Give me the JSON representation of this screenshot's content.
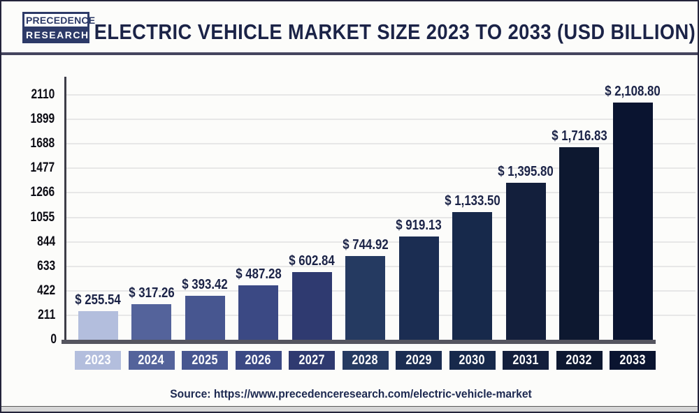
{
  "header": {
    "logo_line1": "PRECEDENCE",
    "logo_line2": "RESEARCH",
    "title": "ELECTRIC VEHICLE MARKET SIZE 2023 TO 2033 (USD BILLION)"
  },
  "chart_data": {
    "type": "bar",
    "title": "Electric Vehicle Market Size 2023 to 2033 (USD Billion)",
    "categories": [
      "2023",
      "2024",
      "2025",
      "2026",
      "2027",
      "2028",
      "2029",
      "2030",
      "2031",
      "2032",
      "2033"
    ],
    "values": [
      255.54,
      317.26,
      393.42,
      487.28,
      602.84,
      744.92,
      919.13,
      1133.5,
      1395.8,
      1716.83,
      2108.8
    ],
    "value_labels": [
      "$ 255.54",
      "$ 317.26",
      "$ 393.42",
      "$ 487.28",
      "$ 602.84",
      "$ 744.92",
      "$ 919.13",
      "$ 1,133.50",
      "$ 1,395.80",
      "$ 1,716.83",
      "$ 2,108.80"
    ],
    "bar_colors": [
      "#b3bedd",
      "#54639b",
      "#475690",
      "#3b4984",
      "#2f3a70",
      "#253a61",
      "#1b2d52",
      "#17294b",
      "#131f3c",
      "#0d1830",
      "#0a1430"
    ],
    "xlabel": "",
    "ylabel": "",
    "ylim": [
      0,
      2110
    ],
    "yticks": [
      0,
      211,
      422,
      633,
      844,
      1055,
      1266,
      1477,
      1688,
      1899,
      2110
    ],
    "grid": "horizontal",
    "legend": "none",
    "label_color": "#1b2347",
    "axis_color": "#55555f",
    "gridline_color": "#e7e7e7"
  },
  "footer": {
    "source_text": "Source: https://www.precedenceresearch.com/electric-vehicle-market"
  }
}
